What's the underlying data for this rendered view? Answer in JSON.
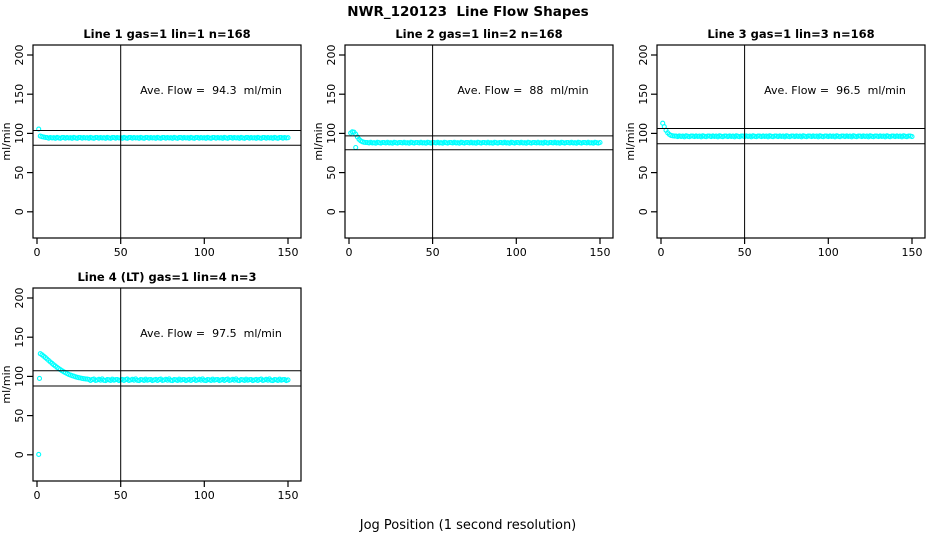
{
  "chart_data": {
    "type": "scatter",
    "title": "NWR_120123  Line Flow Shapes",
    "xlabel": "Jog Position (1 second resolution)",
    "ylabel": "ml/min",
    "point_color": "#00FFFF",
    "line_color": "#000000",
    "marker": "open-circle",
    "x_ticks": [
      0,
      50,
      100,
      150
    ],
    "y_ticks": [
      0,
      50,
      100,
      150,
      200
    ],
    "xlim": [
      -6,
      158
    ],
    "ylim": [
      -13,
      213
    ],
    "grid": false,
    "legend": "none",
    "panels": [
      {
        "title": "Line 1 gas=1 lin=1 n=168",
        "annotation": "Ave. Flow =  94.3  ml/min",
        "ave_flow": 94.3,
        "n": 168,
        "vline_x": 50,
        "ref_lines": [
          103.7,
          84.9
        ],
        "x_start": 1,
        "y": [
          105.5,
          96.5,
          95.8,
          95.3,
          94.9,
          94.6,
          93.9,
          94.8,
          94.1,
          94.5,
          93.7,
          94.9,
          94.3,
          93.8,
          94.7,
          94.6,
          93.9,
          94.8,
          94.1,
          94.5,
          93.7,
          94.9,
          94.3,
          93.8,
          94.7,
          94.6,
          93.9,
          94.8,
          94.1,
          94.5,
          93.7,
          94.9,
          94.3,
          93.8,
          94.7,
          94.6,
          93.9,
          94.8,
          94.1,
          94.5,
          93.7,
          94.9,
          94.3,
          93.8,
          94.7,
          94.6,
          93.9,
          94.8,
          94.1,
          94.5,
          93.7,
          94.9,
          94.3,
          93.8,
          94.7,
          94.6,
          93.9,
          94.8,
          94.1,
          94.5,
          93.7,
          94.9,
          94.3,
          93.8,
          94.7,
          94.6,
          93.9,
          94.8,
          94.1,
          94.5,
          93.7,
          94.9,
          94.3,
          93.8,
          94.7,
          94.6,
          93.9,
          94.8,
          94.1,
          94.5,
          93.7,
          94.9,
          94.3,
          93.8,
          94.7,
          94.6,
          93.9,
          94.8,
          94.1,
          94.5,
          93.7,
          94.9,
          94.3,
          93.8,
          94.7,
          94.6,
          93.9,
          94.8,
          94.1,
          94.5,
          93.7,
          94.9,
          94.3,
          93.8,
          94.7,
          94.6,
          93.9,
          94.8,
          94.1,
          94.5,
          93.7,
          94.9,
          94.3,
          93.8,
          94.7,
          94.6,
          93.9,
          94.8,
          94.1,
          94.5,
          93.7,
          94.9,
          94.3,
          93.8,
          94.7,
          94.6,
          93.9,
          94.8,
          94.1,
          94.5,
          93.7,
          94.9,
          94.3,
          93.8,
          94.7,
          94.6,
          93.9,
          94.8,
          94.1,
          94.5,
          93.7,
          94.9,
          94.3,
          93.8,
          94.7,
          94.6,
          93.9,
          94.8,
          94.1,
          94.5
        ],
        "extra_points": []
      },
      {
        "title": "Line 2 gas=1 lin=2 n=168",
        "annotation": "Ave. Flow =  88  ml/min",
        "ave_flow": 88,
        "n": 168,
        "vline_x": 50,
        "ref_lines": [
          96.8,
          79.2
        ],
        "x_start": 1,
        "y": [
          100.5,
          102,
          101.5,
          99,
          95.5,
          92.5,
          90.5,
          89.3,
          88.7,
          88.4,
          88.3,
          87.7,
          88.6,
          87.9,
          88.2,
          87.5,
          88.7,
          88.1,
          87.6,
          88.4,
          88.3,
          87.7,
          88.6,
          87.9,
          88.2,
          87.5,
          88.7,
          88.1,
          87.6,
          88.4,
          88.3,
          87.7,
          88.6,
          87.9,
          88.2,
          87.5,
          88.7,
          88.1,
          87.6,
          88.4,
          88.3,
          87.7,
          88.6,
          87.9,
          88.2,
          87.5,
          88.7,
          88.1,
          87.6,
          88.4,
          88.3,
          87.7,
          88.6,
          87.9,
          88.2,
          87.5,
          88.7,
          88.1,
          87.6,
          88.4,
          88.3,
          87.7,
          88.6,
          87.9,
          88.2,
          87.5,
          88.7,
          88.1,
          87.6,
          88.4,
          88.3,
          87.7,
          88.6,
          87.9,
          88.2,
          87.5,
          88.7,
          88.1,
          87.6,
          88.4,
          88.3,
          87.7,
          88.6,
          87.9,
          88.2,
          87.5,
          88.7,
          88.1,
          87.6,
          88.4,
          88.3,
          87.7,
          88.6,
          87.9,
          88.2,
          87.5,
          88.7,
          88.1,
          87.6,
          88.4,
          88.3,
          87.7,
          88.6,
          87.9,
          88.2,
          87.5,
          88.7,
          88.1,
          87.6,
          88.4,
          88.3,
          87.7,
          88.6,
          87.9,
          88.2,
          87.5,
          88.7,
          88.1,
          87.6,
          88.4,
          88.3,
          87.7,
          88.6,
          87.9,
          88.2,
          87.5,
          88.7,
          88.1,
          87.6,
          88.4,
          88.3,
          87.7,
          88.6,
          87.9,
          88.2,
          87.5,
          88.7,
          88.1,
          87.6,
          88.4,
          88.3,
          87.7,
          88.6,
          87.9,
          88.2,
          87.5,
          88.7,
          88.1,
          87.6,
          88.4
        ],
        "extra_points": [
          [
            4,
            82
          ]
        ]
      },
      {
        "title": "Line 3 gas=1 lin=3 n=168",
        "annotation": "Ave. Flow =  96.5  ml/min",
        "ave_flow": 96.5,
        "n": 168,
        "vline_x": 50,
        "ref_lines": [
          106.2,
          86.9
        ],
        "x_start": 1,
        "y": [
          113,
          108.5,
          104,
          100.8,
          98.6,
          97.4,
          96.9,
          96.6,
          96.6,
          95.9,
          96.8,
          96.1,
          96.5,
          95.7,
          96.9,
          96.3,
          95.8,
          96.7,
          96.6,
          95.9,
          96.8,
          96.1,
          96.5,
          95.7,
          96.9,
          96.3,
          95.8,
          96.7,
          96.6,
          95.9,
          96.8,
          96.1,
          96.5,
          95.7,
          96.9,
          96.3,
          95.8,
          96.7,
          96.6,
          95.9,
          96.8,
          96.1,
          96.5,
          95.7,
          96.9,
          96.3,
          95.8,
          96.7,
          96.6,
          95.9,
          96.8,
          96.1,
          96.5,
          95.7,
          96.9,
          96.3,
          95.8,
          96.7,
          96.6,
          95.9,
          96.8,
          96.1,
          96.5,
          95.7,
          96.9,
          96.3,
          95.8,
          96.7,
          96.6,
          95.9,
          96.8,
          96.1,
          96.5,
          95.7,
          96.9,
          96.3,
          95.8,
          96.7,
          96.6,
          95.9,
          96.8,
          96.1,
          96.5,
          95.7,
          96.9,
          96.3,
          95.8,
          96.7,
          96.6,
          95.9,
          96.8,
          96.1,
          96.5,
          95.7,
          96.9,
          96.3,
          95.8,
          96.7,
          96.6,
          95.9,
          96.8,
          96.1,
          96.5,
          95.7,
          96.9,
          96.3,
          95.8,
          96.7,
          96.6,
          95.9,
          96.8,
          96.1,
          96.5,
          95.7,
          96.9,
          96.3,
          95.8,
          96.7,
          96.6,
          95.9,
          96.8,
          96.1,
          96.5,
          95.7,
          96.9,
          96.3,
          95.8,
          96.7,
          96.6,
          95.9,
          96.8,
          96.1,
          96.5,
          95.7,
          96.9,
          96.3,
          95.8,
          96.7,
          96.6,
          95.9,
          96.8,
          96.1,
          96.5,
          95.7,
          96.9,
          96.3,
          95.8,
          96.7,
          96.6,
          95.9
        ],
        "extra_points": []
      },
      {
        "title": "Line 4 (LT) gas=1 lin=4 n=3",
        "annotation": "Ave. Flow =  97.5  ml/min",
        "ave_flow": 97.5,
        "n": 3,
        "vline_x": 50,
        "ref_lines": [
          107.3,
          87.8
        ],
        "x_start": 2,
        "y": [
          129,
          127.5,
          125.8,
          124,
          122.2,
          120.3,
          118.4,
          116.6,
          114.8,
          113.1,
          111.5,
          110,
          108.6,
          107.2,
          105.9,
          104.7,
          103.6,
          102.6,
          101.7,
          100.9,
          100.2,
          99.5,
          98.9,
          98.4,
          97.9,
          97.5,
          97.1,
          96.8,
          96.5,
          96.2,
          94.8,
          95.9,
          96.6,
          94.9,
          95.4,
          96.3,
          95.1,
          96.8,
          95.0,
          94.6,
          96.1,
          95.6,
          94.9,
          96.4,
          95.2,
          95.8,
          96.0,
          94.7,
          95.5,
          96.2,
          94.8,
          95.9,
          96.6,
          94.9,
          95.4,
          96.3,
          95.1,
          96.8,
          95.0,
          94.6,
          96.1,
          95.6,
          94.9,
          96.4,
          95.2,
          95.8,
          96.0,
          94.7,
          95.5,
          96.2,
          94.8,
          95.9,
          96.6,
          94.9,
          95.4,
          96.3,
          95.1,
          96.8,
          95.0,
          94.6,
          96.1,
          95.6,
          94.9,
          96.4,
          95.2,
          95.8,
          96.0,
          94.7,
          95.5,
          96.2,
          94.8,
          95.9,
          96.6,
          94.9,
          95.4,
          96.3,
          95.1,
          96.8,
          95.0,
          94.6,
          96.1,
          95.6,
          94.9,
          96.4,
          95.2,
          95.8,
          96.0,
          94.7,
          95.5,
          96.2,
          94.8,
          95.9,
          96.6,
          94.9,
          95.4,
          96.3,
          95.1,
          96.8,
          95.0,
          94.6,
          96.1,
          95.6,
          94.9,
          96.4,
          95.2,
          95.8,
          96.0,
          94.7,
          95.5,
          96.2,
          94.8,
          95.9,
          96.6,
          94.9,
          95.4,
          96.3,
          95.1,
          96.8,
          95.0,
          94.6,
          96.1,
          95.6,
          94.9,
          96.4,
          95.2,
          95.8,
          96.0,
          94.7,
          95.5
        ],
        "extra_points": [
          [
            1,
            0.5
          ],
          [
            1.5,
            97.5
          ]
        ]
      }
    ]
  }
}
